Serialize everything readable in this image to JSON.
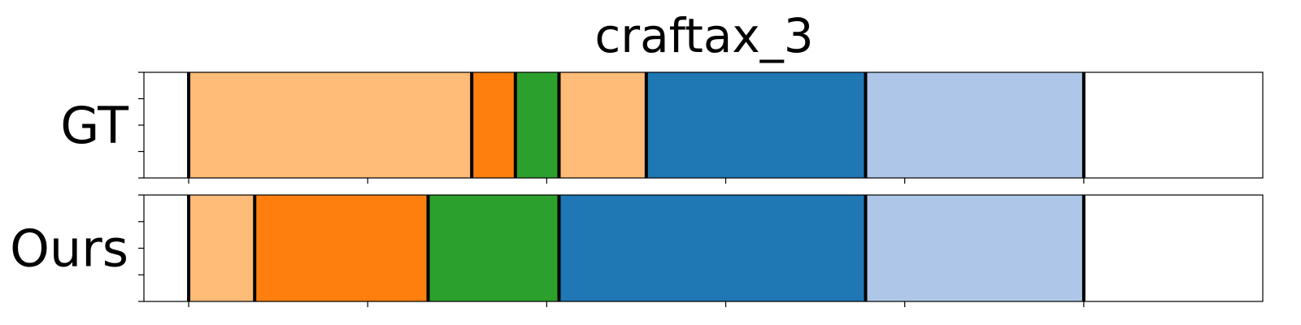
{
  "chart_data": {
    "type": "segmentation-timeline",
    "title": "craftax_3",
    "xlim": [
      0,
      1
    ],
    "xticks": [
      0.04,
      0.2,
      0.36,
      0.52,
      0.68,
      0.84
    ],
    "yticks_per_row": 5,
    "boundary_color": "#000000",
    "rows": [
      {
        "label": "GT",
        "segments": [
          {
            "start": 0.04,
            "end": 0.293,
            "color": "#ffbb78"
          },
          {
            "start": 0.293,
            "end": 0.332,
            "color": "#ff7f0e"
          },
          {
            "start": 0.332,
            "end": 0.371,
            "color": "#2ca02c"
          },
          {
            "start": 0.371,
            "end": 0.449,
            "color": "#ffbb78"
          },
          {
            "start": 0.449,
            "end": 0.645,
            "color": "#1f77b4"
          },
          {
            "start": 0.645,
            "end": 0.84,
            "color": "#aec7e8"
          }
        ],
        "boundaries": [
          0.04,
          0.293,
          0.332,
          0.371,
          0.449,
          0.645,
          0.84
        ]
      },
      {
        "label": "Ours",
        "segments": [
          {
            "start": 0.04,
            "end": 0.099,
            "color": "#ffbb78"
          },
          {
            "start": 0.099,
            "end": 0.254,
            "color": "#ff7f0e"
          },
          {
            "start": 0.254,
            "end": 0.371,
            "color": "#2ca02c"
          },
          {
            "start": 0.371,
            "end": 0.645,
            "color": "#1f77b4"
          },
          {
            "start": 0.645,
            "end": 0.84,
            "color": "#aec7e8"
          }
        ],
        "boundaries": [
          0.04,
          0.099,
          0.254,
          0.371,
          0.645,
          0.84
        ]
      }
    ]
  }
}
